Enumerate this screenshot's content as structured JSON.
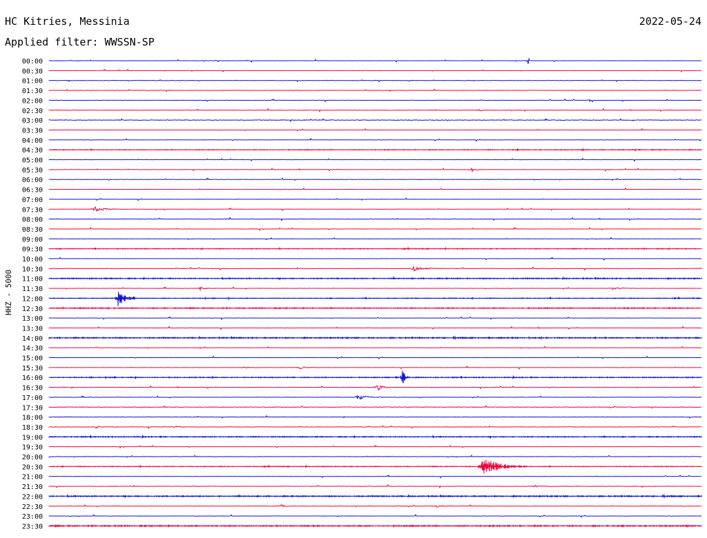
{
  "header": {
    "station": "HC Kitries, Messinia",
    "date": "2022-05-24",
    "filter": "Applied filter: WWSSN-SP"
  },
  "colors": {
    "blue_trace": "#1010d0",
    "red_trace": "#f0003a",
    "text": "#000000",
    "background": "#ffffff"
  },
  "chart_data": {
    "type": "line",
    "ylabel": "HHZ - 5000",
    "row_colors_cycle": [
      "blue",
      "red"
    ],
    "rows": [
      "00:00",
      "00:30",
      "01:00",
      "01:30",
      "02:00",
      "02:30",
      "03:00",
      "03:30",
      "04:00",
      "04:30",
      "05:00",
      "05:30",
      "06:00",
      "06:30",
      "07:00",
      "07:30",
      "08:00",
      "08:30",
      "09:00",
      "09:30",
      "10:00",
      "10:30",
      "11:00",
      "11:30",
      "12:00",
      "12:30",
      "13:00",
      "13:30",
      "14:00",
      "14:30",
      "15:00",
      "15:30",
      "16:00",
      "16:30",
      "17:00",
      "17:30",
      "18:00",
      "18:30",
      "19:00",
      "19:30",
      "20:00",
      "20:30",
      "21:00",
      "21:30",
      "22:00",
      "22:30",
      "23:00",
      "23:30"
    ],
    "noise_level_by_row": [
      0.3,
      0.3,
      0.6,
      0.5,
      0.3,
      0.6,
      0.8,
      0.3,
      0.3,
      1.0,
      0.3,
      0.5,
      0.5,
      0.3,
      0.3,
      0.3,
      0.5,
      0.3,
      0.3,
      1.0,
      0.3,
      0.6,
      1.4,
      0.3,
      1.0,
      1.4,
      0.3,
      0.3,
      1.6,
      0.3,
      0.3,
      0.3,
      1.2,
      0.6,
      0.5,
      0.8,
      0.5,
      0.6,
      1.3,
      0.3,
      0.6,
      1.0,
      0.3,
      0.6,
      1.6,
      0.6,
      0.3,
      1.8
    ],
    "events": [
      {
        "row": 0,
        "minute": 22.0,
        "amplitude": 6,
        "duration_min": 0.2
      },
      {
        "row": 4,
        "minute": 24.8,
        "amplitude": 2,
        "duration_min": 0.4
      },
      {
        "row": 5,
        "minute": 19.7,
        "amplitude": 2,
        "duration_min": 0.5
      },
      {
        "row": 11,
        "minute": 19.4,
        "amplitude": 3,
        "duration_min": 0.6
      },
      {
        "row": 15,
        "minute": 2.0,
        "amplitude": 4,
        "duration_min": 1.2
      },
      {
        "row": 21,
        "minute": 16.6,
        "amplitude": 4,
        "duration_min": 1.6
      },
      {
        "row": 23,
        "minute": 6.9,
        "amplitude": 3,
        "duration_min": 0.5
      },
      {
        "row": 23,
        "minute": 25.8,
        "amplitude": 2,
        "duration_min": 1.3
      },
      {
        "row": 24,
        "minute": 3.1,
        "amplitude": 15,
        "duration_min": 1.0
      },
      {
        "row": 29,
        "minute": 2.1,
        "amplitude": 2,
        "duration_min": 0.5
      },
      {
        "row": 31,
        "minute": 8.9,
        "amplitude": 2,
        "duration_min": 0.8
      },
      {
        "row": 31,
        "minute": 11.4,
        "amplitude": 3,
        "duration_min": 0.8
      },
      {
        "row": 32,
        "minute": 16.2,
        "amplitude": 15,
        "duration_min": 0.4
      },
      {
        "row": 33,
        "minute": 15.0,
        "amplitude": 5,
        "duration_min": 0.9
      },
      {
        "row": 34,
        "minute": 14.1,
        "amplitude": 4,
        "duration_min": 1.3
      },
      {
        "row": 36,
        "minute": 13.5,
        "amplitude": 2,
        "duration_min": 0.2
      },
      {
        "row": 37,
        "minute": 2.1,
        "amplitude": 2,
        "duration_min": 0.5
      },
      {
        "row": 37,
        "minute": 5.8,
        "amplitude": 2,
        "duration_min": 0.4
      },
      {
        "row": 41,
        "minute": 19.8,
        "amplitude": 14,
        "duration_min": 2.2
      },
      {
        "row": 43,
        "minute": 22.2,
        "amplitude": 2,
        "duration_min": 0.8
      },
      {
        "row": 45,
        "minute": 10.6,
        "amplitude": 3,
        "duration_min": 0.5
      },
      {
        "row": 45,
        "minute": 17.8,
        "amplitude": 2,
        "duration_min": 0.5
      }
    ]
  }
}
